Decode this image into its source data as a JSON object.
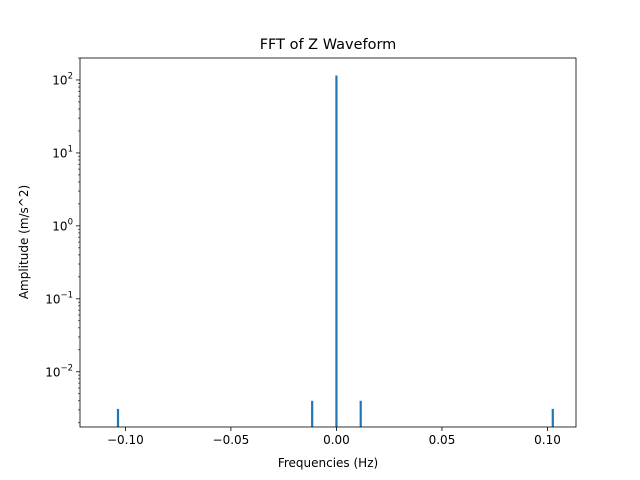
{
  "chart_data": {
    "type": "bar",
    "title": "FFT of Z Waveform",
    "xlabel": "Frequencies (Hz)",
    "ylabel": "Amplitude (m/s^2)",
    "xlim": [
      -0.1215,
      0.1135
    ],
    "ylim": [
      0.00175,
      200
    ],
    "yscale": "log",
    "grid": false,
    "x_ticks": [
      {
        "value": -0.1,
        "label": "−0.10"
      },
      {
        "value": -0.05,
        "label": "−0.05"
      },
      {
        "value": 0.0,
        "label": "0.00"
      },
      {
        "value": 0.05,
        "label": "0.05"
      },
      {
        "value": 0.1,
        "label": "0.10"
      }
    ],
    "y_ticks": [
      {
        "value": 0.01,
        "base": "10",
        "exp": "−2"
      },
      {
        "value": 0.1,
        "base": "10",
        "exp": "−1"
      },
      {
        "value": 1,
        "base": "10",
        "exp": "0"
      },
      {
        "value": 10,
        "base": "10",
        "exp": "1"
      },
      {
        "value": 100,
        "base": "10",
        "exp": "2"
      }
    ],
    "series": [
      {
        "color": "#1f77b4",
        "points": [
          {
            "x": -0.1035,
            "y": 0.0031
          },
          {
            "x": -0.0115,
            "y": 0.004
          },
          {
            "x": 0.0,
            "y": 115
          },
          {
            "x": 0.0115,
            "y": 0.004
          },
          {
            "x": 0.1025,
            "y": 0.0031
          }
        ]
      }
    ]
  }
}
